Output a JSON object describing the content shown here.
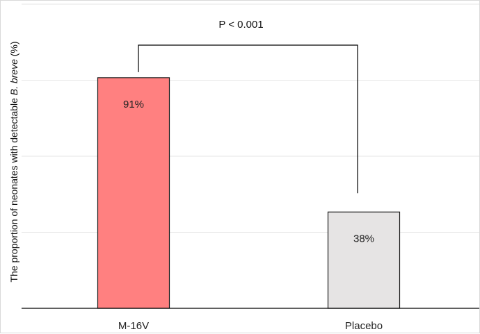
{
  "chart_data": {
    "type": "bar",
    "categories": [
      "M-16V",
      "Placebo"
    ],
    "values": [
      91,
      38
    ],
    "data_labels": [
      "91%",
      "38%"
    ],
    "ylabel_prefix": "The proportion of neonates with detectable ",
    "ylabel_italic": "B. breve",
    "ylabel_suffix": " (%)",
    "ylim": [
      0,
      121
    ],
    "grid": true,
    "significance": {
      "label": "P < 0.001",
      "between": [
        "M-16V",
        "Placebo"
      ]
    },
    "colors": {
      "bars": [
        "#ff8080",
        "#e6e4e4"
      ],
      "bar_stroke": "#1a1a1a",
      "grid": "#e6e6e6",
      "axis": "#000000",
      "bracket": "#000000"
    }
  }
}
